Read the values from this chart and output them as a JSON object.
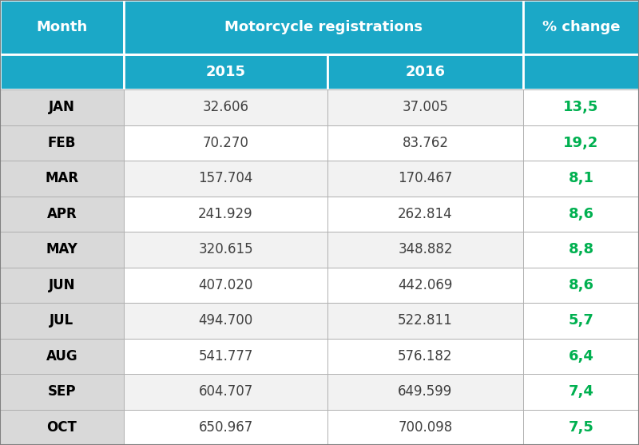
{
  "months": [
    "JAN",
    "FEB",
    "MAR",
    "APR",
    "MAY",
    "JUN",
    "JUL",
    "AUG",
    "SEP",
    "OCT"
  ],
  "val_2015": [
    "32.606",
    "70.270",
    "157.704",
    "241.929",
    "320.615",
    "407.020",
    "494.700",
    "541.777",
    "604.707",
    "650.967"
  ],
  "val_2016": [
    "37.005",
    "83.762",
    "170.467",
    "262.814",
    "348.882",
    "442.069",
    "522.811",
    "576.182",
    "649.599",
    "700.098"
  ],
  "pct_change": [
    "13,5",
    "19,2",
    "8,1",
    "8,6",
    "8,8",
    "8,6",
    "5,7",
    "6,4",
    "7,4",
    "7,5"
  ],
  "header_bg": "#1ba8c7",
  "header_text": "#ffffff",
  "month_col_bg": "#d9d9d9",
  "data_row_bg_odd": "#f2f2f2",
  "data_row_bg_even": "#ffffff",
  "pct_col_bg_data": "#ffffff",
  "pct_text_color": "#00b050",
  "month_text_color": "#000000",
  "data_text_color": "#404040",
  "border_color": "#404040",
  "col_header_main": "Motorcycle registrations",
  "col_header_year1": "2015",
  "col_header_year2": "2016",
  "col_header_month": "Month",
  "col_header_pct": "% change",
  "fig_w": 8.0,
  "fig_h": 5.57,
  "dpi": 100
}
